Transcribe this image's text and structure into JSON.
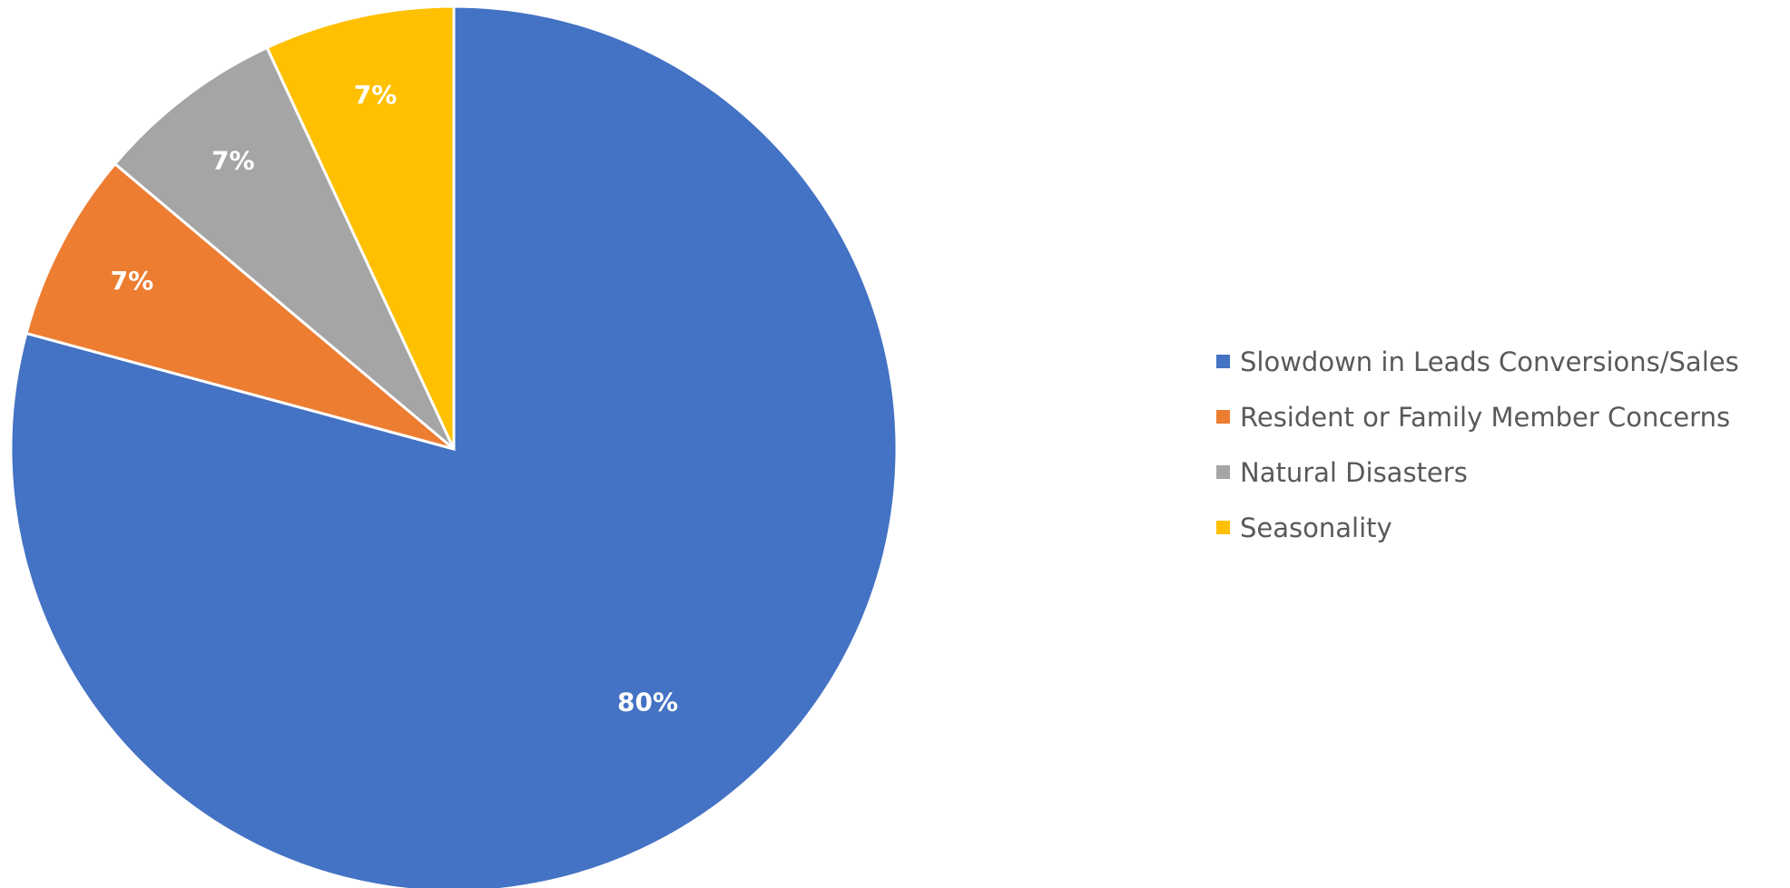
{
  "chart_data": {
    "type": "pie",
    "categories": [
      "Slowdown in Leads Conversions/Sales",
      "Resident or Family Member Concerns",
      "Natural Disasters",
      "Seasonality"
    ],
    "values": [
      80,
      7,
      7,
      7
    ],
    "data_labels": [
      "80%",
      "7%",
      "7%",
      "7%"
    ],
    "colors": [
      "#4472C4",
      "#ED7D31",
      "#A5A5A5",
      "#FFC000"
    ],
    "start_angle": "12 o'clock",
    "direction": "clockwise",
    "legend_position": "right",
    "title": ""
  }
}
